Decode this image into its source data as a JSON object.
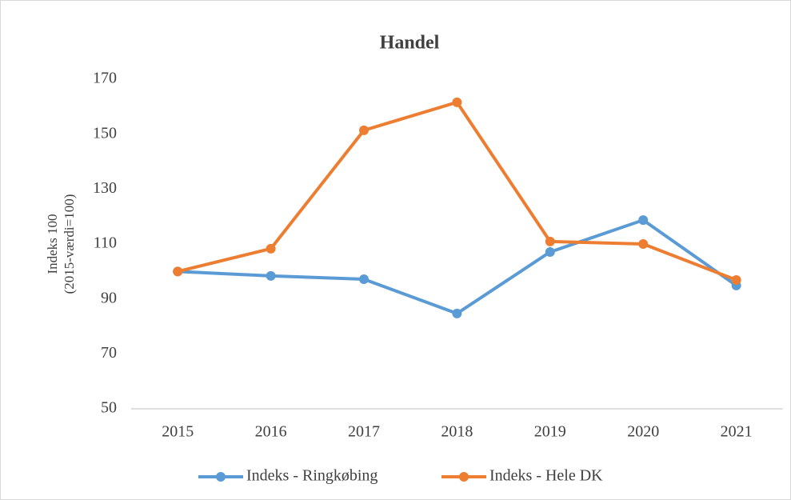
{
  "chart_data": {
    "type": "line",
    "title": "Handel",
    "y_label": [
      "Indeks 100",
      "(2015-værdi=100)"
    ],
    "categories": [
      "2015",
      "2016",
      "2017",
      "2018",
      "2019",
      "2020",
      "2021"
    ],
    "series": [
      {
        "name": "Indeks - Ringkøbing",
        "color": "#5b9bd5",
        "values": [
          100,
          98.4,
          97.2,
          84.7,
          107.1,
          118.7,
          94.9
        ]
      },
      {
        "name": "Indeks - Hele DK",
        "color": "#ed7d31",
        "values": [
          100,
          108.3,
          151.4,
          161.6,
          110.9,
          110,
          96.9
        ]
      }
    ],
    "ylim": [
      50,
      170
    ],
    "yticks": [
      50,
      70,
      90,
      110,
      130,
      150,
      170
    ],
    "grid": false,
    "legend": "bottom"
  }
}
